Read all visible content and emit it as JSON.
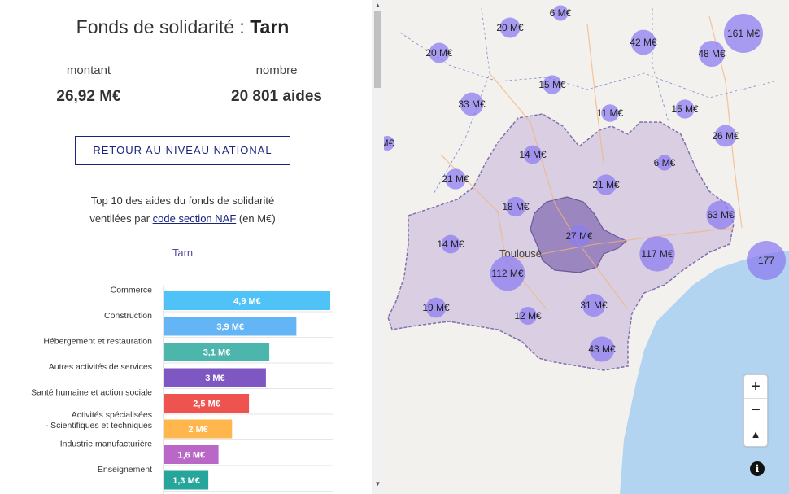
{
  "header": {
    "title_prefix": "Fonds de solidarité : ",
    "title_dept": "Tarn"
  },
  "stats": {
    "amount_label": "montant",
    "amount_value": "26,92 M€",
    "count_label": "nombre",
    "count_value": "20 801 aides"
  },
  "back_button": "RETOUR AU NIVEAU NATIONAL",
  "top": {
    "line1": "Top 10 des aides du fonds de solidarité",
    "line2_prefix": "ventilées par ",
    "link": "code section NAF",
    "line2_suffix": " (en M€)"
  },
  "dept_label": "Tarn",
  "chart_data": {
    "type": "bar",
    "orientation": "horizontal",
    "categories": [
      [
        "Commerce"
      ],
      [
        "Construction"
      ],
      [
        "Hébergement et restauration"
      ],
      [
        "Autres activités de services"
      ],
      [
        "Santé humaine et action sociale"
      ],
      [
        "Activités spécialisées",
        "- Scientifiques et techniques"
      ],
      [
        "Industrie manufacturière"
      ],
      [
        "Enseignement"
      ]
    ],
    "values": [
      4.9,
      3.9,
      3.1,
      3.0,
      2.5,
      2.0,
      1.6,
      1.3
    ],
    "value_labels": [
      "4,9 M€",
      "3,9 M€",
      "3,1 M€",
      "3 M€",
      "2,5 M€",
      "2 M€",
      "1,6 M€",
      "1,3 M€"
    ],
    "colors": [
      "#4fc3f7",
      "#64b5f6",
      "#4db6ac",
      "#7e57c2",
      "#ef5350",
      "#ffb74d",
      "#ba68c8",
      "#26a69a"
    ],
    "xlim": [
      0,
      4.9
    ]
  },
  "map": {
    "city": "Toulouse",
    "bubbles": [
      {
        "label": "6 M€",
        "value": 6
      },
      {
        "label": "20 M€",
        "value": 20
      },
      {
        "label": "20 M€",
        "value": 20
      },
      {
        "label": "42 M€",
        "value": 42
      },
      {
        "label": "161 M€",
        "value": 161
      },
      {
        "label": "48 M€",
        "value": 48
      },
      {
        "label": "15 M€",
        "value": 15
      },
      {
        "label": "33 M€",
        "value": 33
      },
      {
        "label": "11 M€",
        "value": 11
      },
      {
        "label": "15 M€",
        "value": 15
      },
      {
        "label": "26 M€",
        "value": 26
      },
      {
        "label": "M€",
        "value": 0
      },
      {
        "label": "14 M€",
        "value": 14
      },
      {
        "label": "6 M€",
        "value": 6
      },
      {
        "label": "21 M€",
        "value": 21
      },
      {
        "label": "21 M€",
        "value": 21
      },
      {
        "label": "18 M€",
        "value": 18
      },
      {
        "label": "63 M€",
        "value": 63
      },
      {
        "label": "27 M€",
        "value": 27
      },
      {
        "label": "14 M€",
        "value": 14
      },
      {
        "label": "117 M€",
        "value": 117
      },
      {
        "label": "177",
        "value": 177
      },
      {
        "label": "112 M€",
        "value": 112
      },
      {
        "label": "19 M€",
        "value": 19
      },
      {
        "label": "12 M€",
        "value": 12
      },
      {
        "label": "31 M€",
        "value": 31
      },
      {
        "label": "43 M€",
        "value": 43
      }
    ],
    "zoom_in": "+",
    "zoom_out": "−",
    "compass": "▲",
    "info": "i"
  }
}
